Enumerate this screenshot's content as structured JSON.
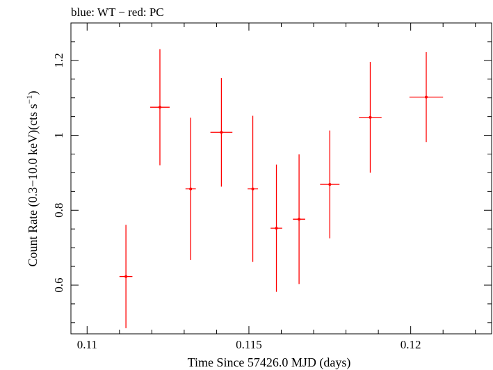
{
  "chart_data": {
    "type": "scatter",
    "title": "blue: WT − red: PC",
    "xlabel": "Time Since 57426.0 MJD (days)",
    "ylabel_main": "Count Rate (0.3−10.0 keV)(cts s",
    "ylabel_sup": "−1",
    "ylabel_end": ")",
    "xlim": [
      0.1095,
      0.1225
    ],
    "ylim": [
      0.47,
      1.3
    ],
    "x_major_ticks": [
      0.11,
      0.115,
      0.12
    ],
    "x_tick_labels": [
      "0.11",
      "0.115",
      "0.12"
    ],
    "x_minor_step": 0.001,
    "y_major_ticks": [
      0.6,
      0.8,
      1.0,
      1.2
    ],
    "y_tick_labels": [
      "0.6",
      "0.8",
      "1",
      "1.2"
    ],
    "y_minor_step": 0.05,
    "grid": false,
    "series": [
      {
        "color": "#ff0000",
        "points": [
          {
            "x": 0.1112,
            "xerr": 0.0002,
            "y": 0.623,
            "yerr": 0.138
          },
          {
            "x": 0.11225,
            "xerr": 0.0003,
            "y": 1.075,
            "yerr": 0.155
          },
          {
            "x": 0.1132,
            "xerr": 0.00016,
            "y": 0.857,
            "yerr": 0.19
          },
          {
            "x": 0.11415,
            "xerr": 0.00034,
            "y": 1.008,
            "yerr": 0.145
          },
          {
            "x": 0.11512,
            "xerr": 0.00016,
            "y": 0.857,
            "yerr": 0.195
          },
          {
            "x": 0.11585,
            "xerr": 0.00018,
            "y": 0.752,
            "yerr": 0.17
          },
          {
            "x": 0.11655,
            "xerr": 0.00019,
            "y": 0.776,
            "yerr": 0.173
          },
          {
            "x": 0.1175,
            "xerr": 0.0003,
            "y": 0.869,
            "yerr": 0.144
          },
          {
            "x": 0.11875,
            "xerr": 0.00035,
            "y": 1.048,
            "yerr": 0.148
          },
          {
            "x": 0.12048,
            "xerr": 0.00052,
            "y": 1.102,
            "yerr": 0.12
          }
        ]
      }
    ]
  }
}
